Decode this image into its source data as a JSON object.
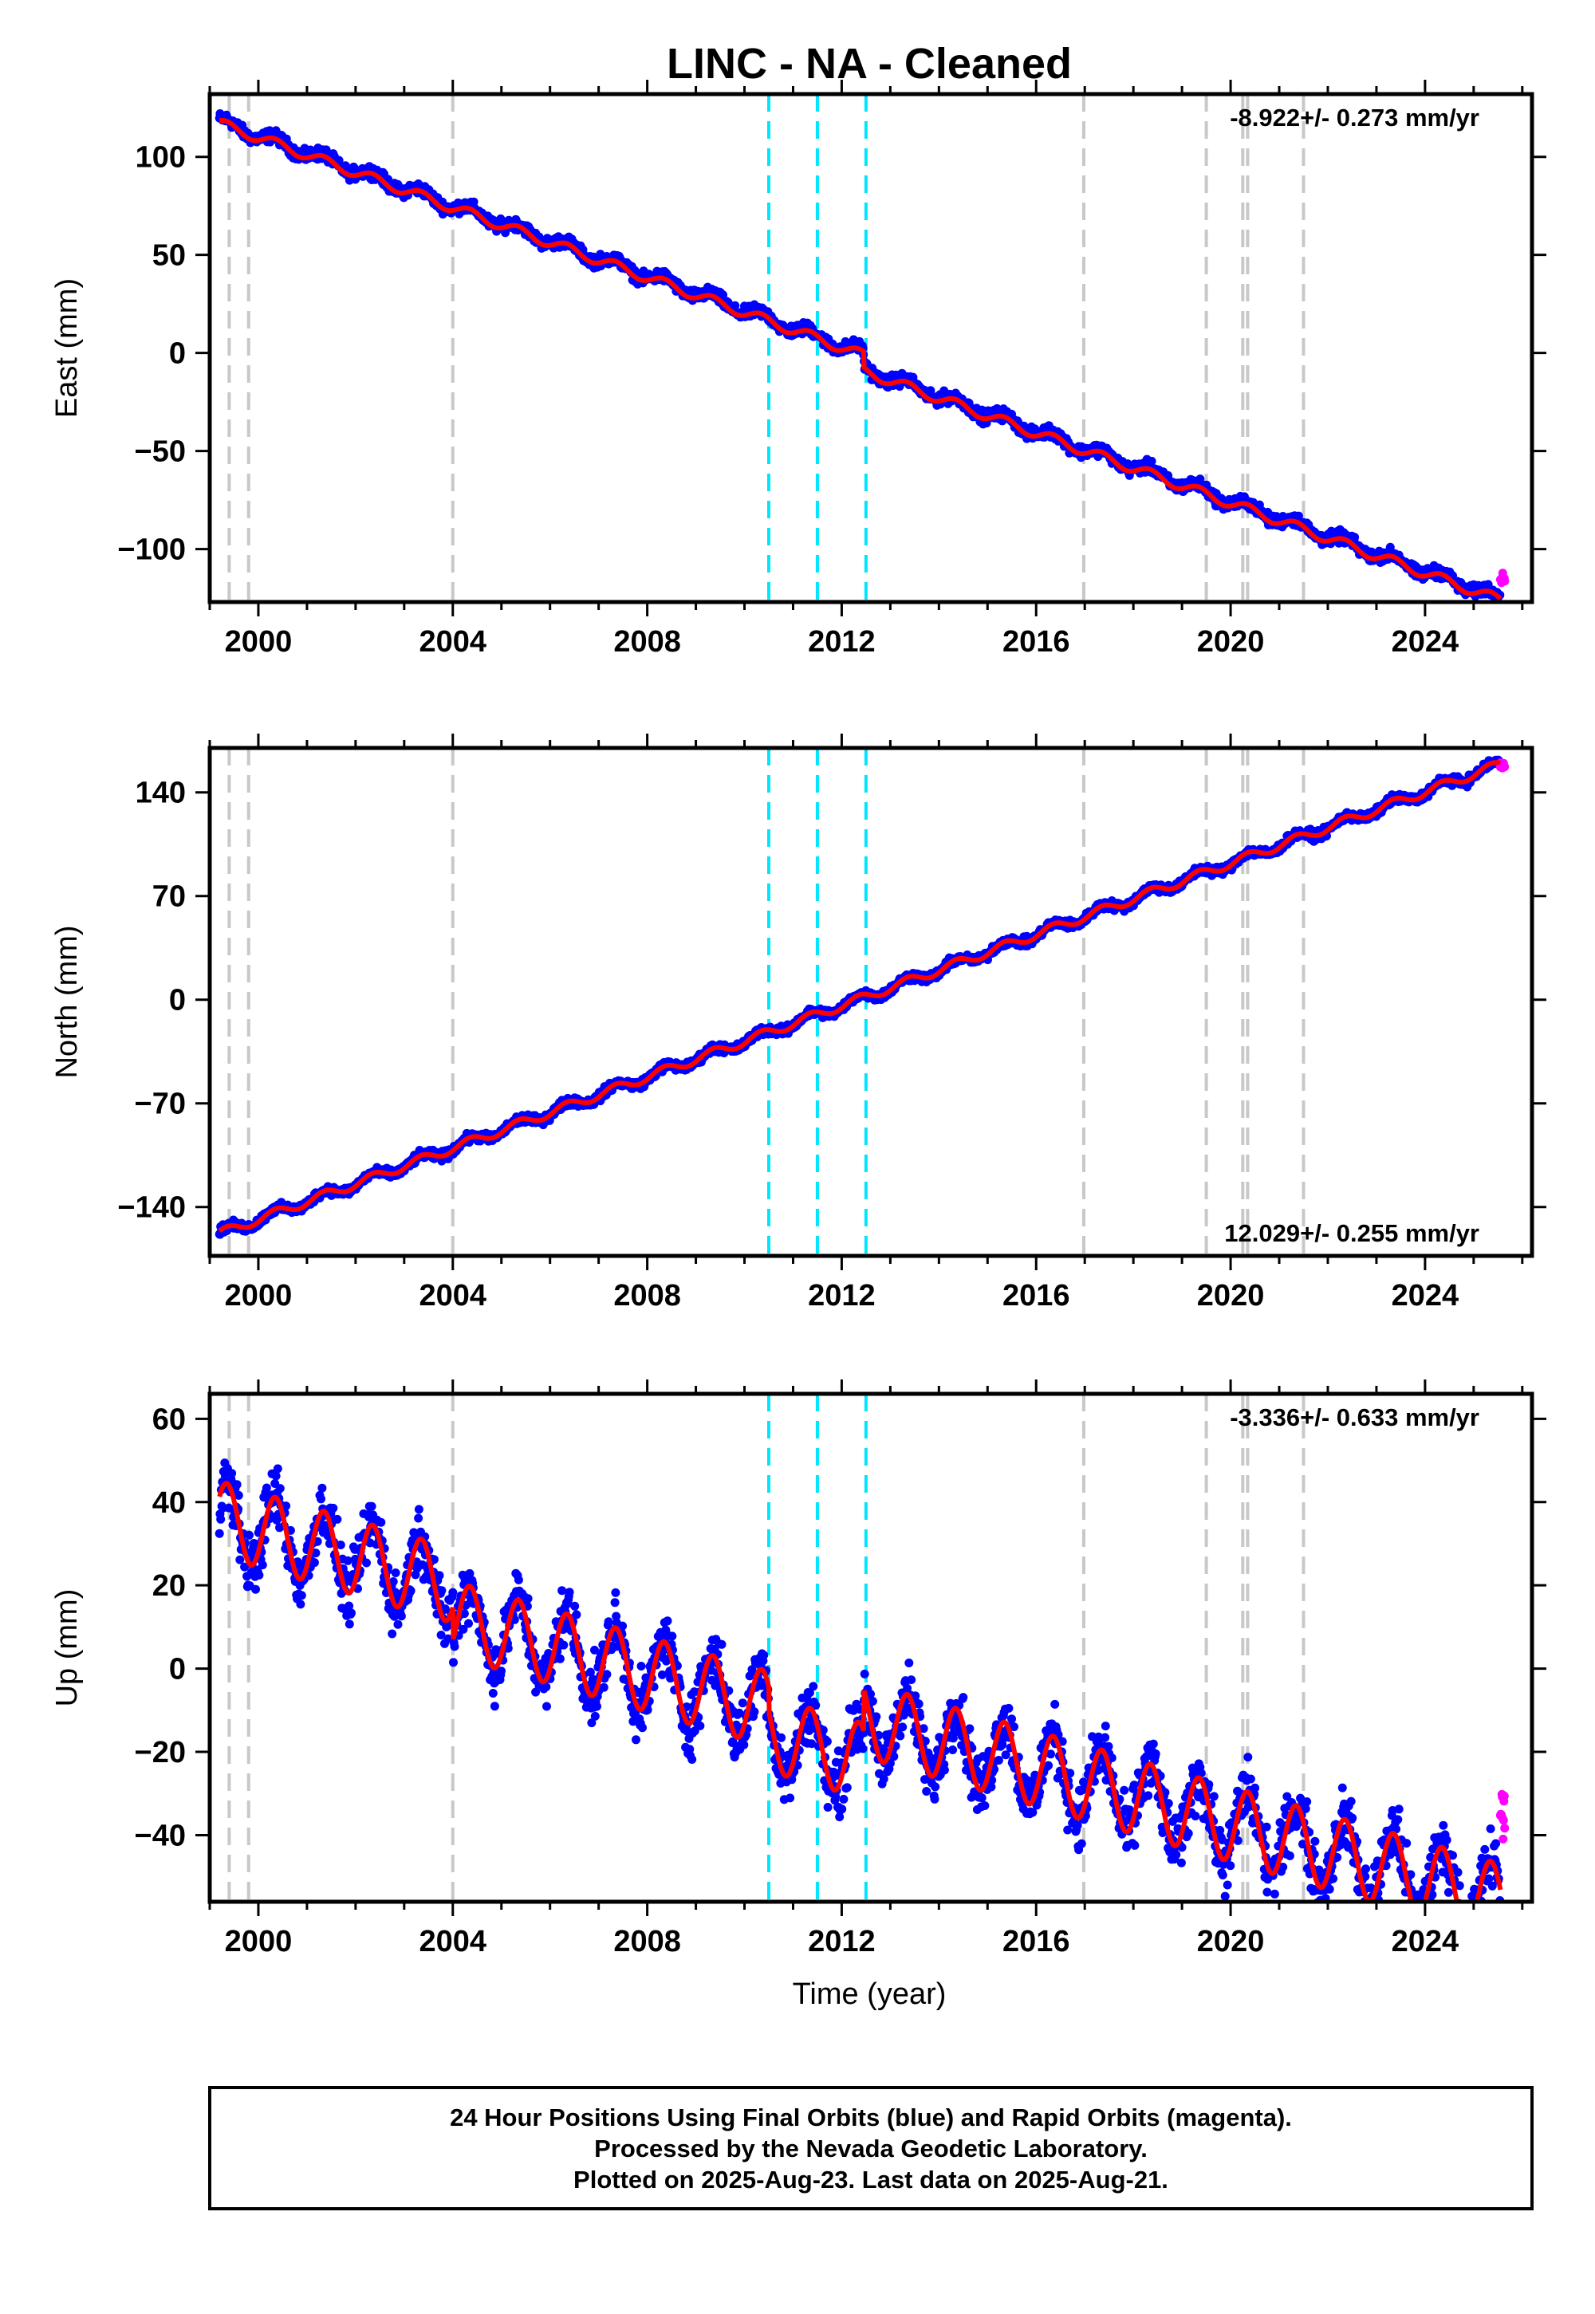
{
  "title": "LINC  - NA - Cleaned",
  "xlabel": "Time (year)",
  "footer": [
    "24 Hour Positions Using Final Orbits (blue) and Rapid Orbits (magenta).",
    "Processed by the Nevada Geodetic Laboratory.",
    "Plotted on 2025-Aug-23. Last data on 2025-Aug-21."
  ],
  "colors": {
    "final_orbits": "#0000ff",
    "rapid_orbits": "#ff00ff",
    "model": "#ff0000",
    "equipment_change": "#c8c8c8",
    "earthquake": "#00e6ff"
  },
  "chart_data": [
    {
      "type": "scatter",
      "ylabel": "East (mm)",
      "rate_text": "-8.922+/- 0.273 mm/yr",
      "rate_position": "top-right",
      "xlim": [
        1999.0,
        2026.2
      ],
      "ylim": [
        -127,
        132
      ],
      "xticks": [
        "2000",
        "2004",
        "2008",
        "2012",
        "2016",
        "2020",
        "2024"
      ],
      "yticks": [
        "100",
        "50",
        "0",
        "−50",
        "−100"
      ],
      "series": [
        {
          "name": "Final Orbits",
          "color": "#0000ff",
          "trend": {
            "t0": 1999.2,
            "y0": 118,
            "rate": -8.922
          },
          "seasonal_amplitude": 2.5,
          "scatter": 2.5,
          "steps": [
            {
              "x": 2012.45,
              "dy": -8
            }
          ],
          "x_range": [
            1999.2,
            2025.55
          ]
        },
        {
          "name": "Rapid Orbits",
          "color": "#ff00ff",
          "x_range": [
            2025.55,
            2025.64
          ],
          "y": -115
        }
      ],
      "model_line": {
        "color": "#ff0000",
        "trend": {
          "t0": 1999.2,
          "y0": 117,
          "rate": -8.922
        },
        "seasonal_amplitude": 2.5,
        "steps": [
          {
            "x": 2012.45,
            "dy": -8
          }
        ]
      }
    },
    {
      "type": "scatter",
      "ylabel": "North (mm)",
      "rate_text": "12.029+/- 0.255 mm/yr",
      "rate_position": "bottom-right",
      "xlim": [
        1999.0,
        2026.2
      ],
      "ylim": [
        -173,
        170
      ],
      "xticks": [
        "2000",
        "2004",
        "2008",
        "2012",
        "2016",
        "2020",
        "2024"
      ],
      "yticks": [
        "140",
        "70",
        "0",
        "−70",
        "−140"
      ],
      "series": [
        {
          "name": "Final Orbits",
          "color": "#0000ff",
          "trend": {
            "t0": 1999.2,
            "y0": -158,
            "rate": 12.029
          },
          "seasonal_amplitude": 3,
          "scatter": 2.5,
          "steps": [],
          "x_range": [
            1999.2,
            2025.55
          ]
        },
        {
          "name": "Rapid Orbits",
          "color": "#ff00ff",
          "x_range": [
            2025.55,
            2025.64
          ],
          "y": 158
        }
      ],
      "model_line": {
        "color": "#ff0000",
        "trend": {
          "t0": 1999.2,
          "y0": -158,
          "rate": 12.029
        },
        "seasonal_amplitude": 3,
        "steps": []
      }
    },
    {
      "type": "scatter",
      "ylabel": "Up (mm)",
      "rate_text": "-3.336+/- 0.633 mm/yr",
      "rate_position": "top-right",
      "xlim": [
        1999.0,
        2026.2
      ],
      "ylim": [
        -56,
        66
      ],
      "xticks": [
        "2000",
        "2004",
        "2008",
        "2012",
        "2016",
        "2020",
        "2024"
      ],
      "yticks": [
        "60",
        "40",
        "20",
        "0",
        "−20",
        "−40"
      ],
      "series": [
        {
          "name": "Final Orbits",
          "color": "#0000ff",
          "trend": {
            "t0": 1999.2,
            "y0": 36,
            "rate": -3.336
          },
          "seasonal_amplitude": 9,
          "scatter": 6,
          "steps": [
            {
              "x": 2004.0,
              "dy": -8
            },
            {
              "x": 2010.5,
              "dy": -6
            },
            {
              "x": 2012.45,
              "dy": 10
            }
          ],
          "x_range": [
            1999.2,
            2025.55
          ]
        },
        {
          "name": "Rapid Orbits",
          "color": "#ff00ff",
          "x_range": [
            2025.55,
            2025.64
          ],
          "y": -35
        }
      ],
      "model_line": {
        "color": "#ff0000",
        "trend": {
          "t0": 1999.2,
          "y0": 36,
          "rate": -3.336
        },
        "seasonal_amplitude": 9,
        "steps": [
          {
            "x": 2004.0,
            "dy": -8
          },
          {
            "x": 2010.5,
            "dy": -6
          },
          {
            "x": 2012.45,
            "dy": 10
          }
        ]
      }
    }
  ],
  "vertical_markers": {
    "equipment_changes": [
      1999.4,
      1999.8,
      2004.0,
      2016.98,
      2019.5,
      2020.25,
      2020.35,
      2021.5
    ],
    "earthquakes": [
      2010.5,
      2011.5,
      2012.5
    ]
  }
}
